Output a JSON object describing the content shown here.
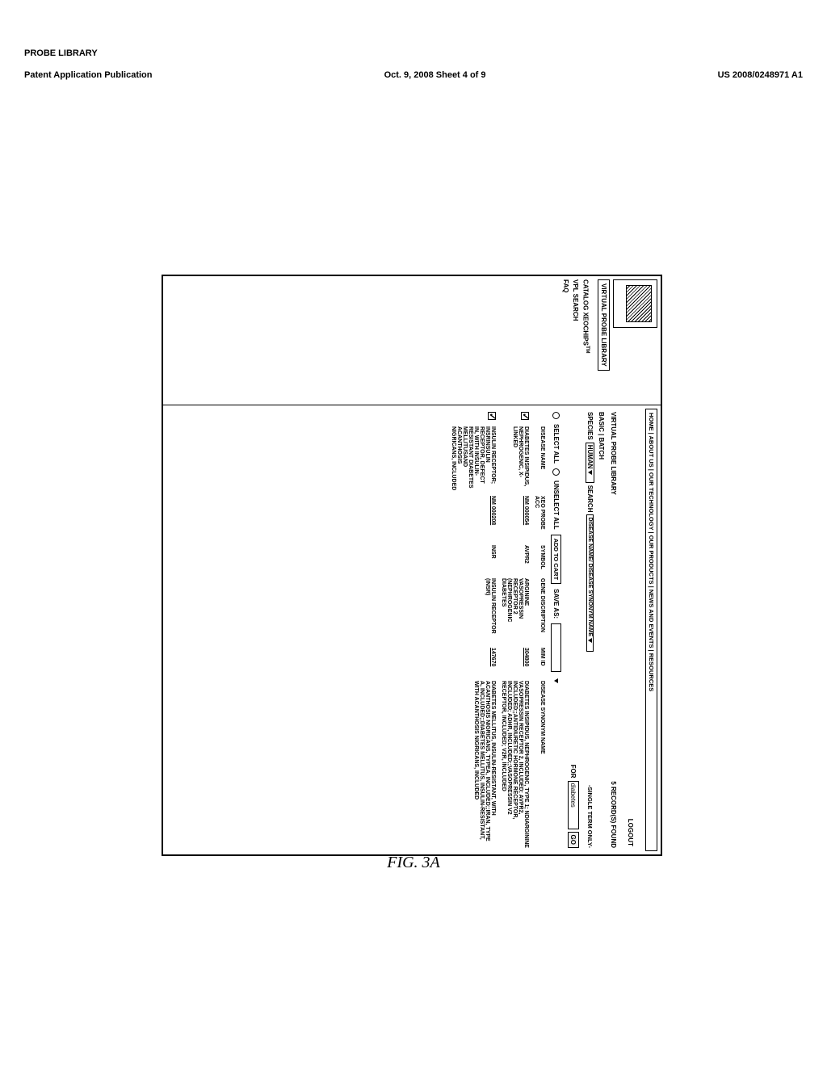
{
  "page_header": "PROBE LIBRARY",
  "pub": {
    "left": "Patent Application Publication",
    "center": "Oct. 9, 2008  Sheet 4 of 9",
    "right": "US 2008/0248971 A1"
  },
  "tabs": {
    "active": "VIRTUAL PROBE LIBRARY"
  },
  "sidebar": {
    "catalog": "CATALOG XEOCHIPS",
    "tm": "TM",
    "vpl": "VPL SEARCH",
    "faq": "FAQ"
  },
  "nav": "HOME | ABOUT US | OUR TECHNOLOGY | OUR PRODUCTS | NEWS AND EVENTS | RESOURCES",
  "logout": "LOGOUT",
  "toolbar": {
    "left": "VIRTUAL PROBE LIBRARY",
    "right": "5 RECORD(S) FOUND"
  },
  "mode": {
    "basic": "BASIC",
    "batch": "BATCH"
  },
  "search": {
    "species_label": "SPECIES",
    "species_value": "HUMAN",
    "search_label": "SEARCH",
    "searchby_value": "DISEASE NAME/ DISEASE SYNONYM NAME",
    "single": "-SINGLE TERM ONLY-",
    "for_label": "FOR",
    "for_value": "diabetes",
    "go": "GO"
  },
  "actions": {
    "select_all": "SELECT ALL",
    "unselect_all": "UNSELECT ALL",
    "add_cart": "ADD TO CART",
    "save_as": "SAVE AS:"
  },
  "columns": {
    "disease": "DISEASE NAME",
    "acc": "XEO PROBE ACC",
    "symbol": "SYMBOL",
    "gdesc": "GENE DISCRIPTION",
    "mim": "MIM ID",
    "syn": "DISEASE SYNONYM NAME"
  },
  "rows": [
    {
      "checked": true,
      "disease": "DIABETES INSIPIDUS, NEPHROGENIC, X-LINKED",
      "acc": "NM 000054",
      "symbol": "AVPR2",
      "gdesc": "ARGININE VASOPRESSIN RECEPTOR 2 (NEPHROGENIC DIABETES",
      "mim": "304800",
      "syn": "DIABETES INSIPIDUS, NEPHROGENIC, TYPE 1; NDIARGININE VASOPRESSIN RECEPTOR 2, INCLUDED; AVPR2, INCLUDED;;ANTIDIURETIC HORMONE RECEPTOR, INCLUDED; ADHR, INCLUDED;;VASOPRESSIN V2 RECEPTOR, INCLUDED; V2R, INCLUDED"
    },
    {
      "checked": true,
      "disease": "INSULIN RECEPTOR; INSRINSULIN RECEPTOR, DEFECT IN, WITH INSULIN-RESISTANT DIABETES MELLITUSAND ACANTHOSIS NIGRICANS, INCLUDED",
      "acc": "NM 000208",
      "symbol": "INSR",
      "gdesc": "INSULIN RECEPTOR (INSR)",
      "mim": "147670",
      "syn": "DIABETES MELLITUS, INSULIN-RESISTANT, WITH ACANTHOSIS NIGRICANS, TYPEA, INCLUDED;;IRAN, TYPE A, INCLUDED;;DIABETES MELLITUS, INSULIN-RESISTANT, WITH ACANTHOSIS NIGRICANS, INCLUDED"
    }
  ],
  "figure_label": "FIG. 3A"
}
